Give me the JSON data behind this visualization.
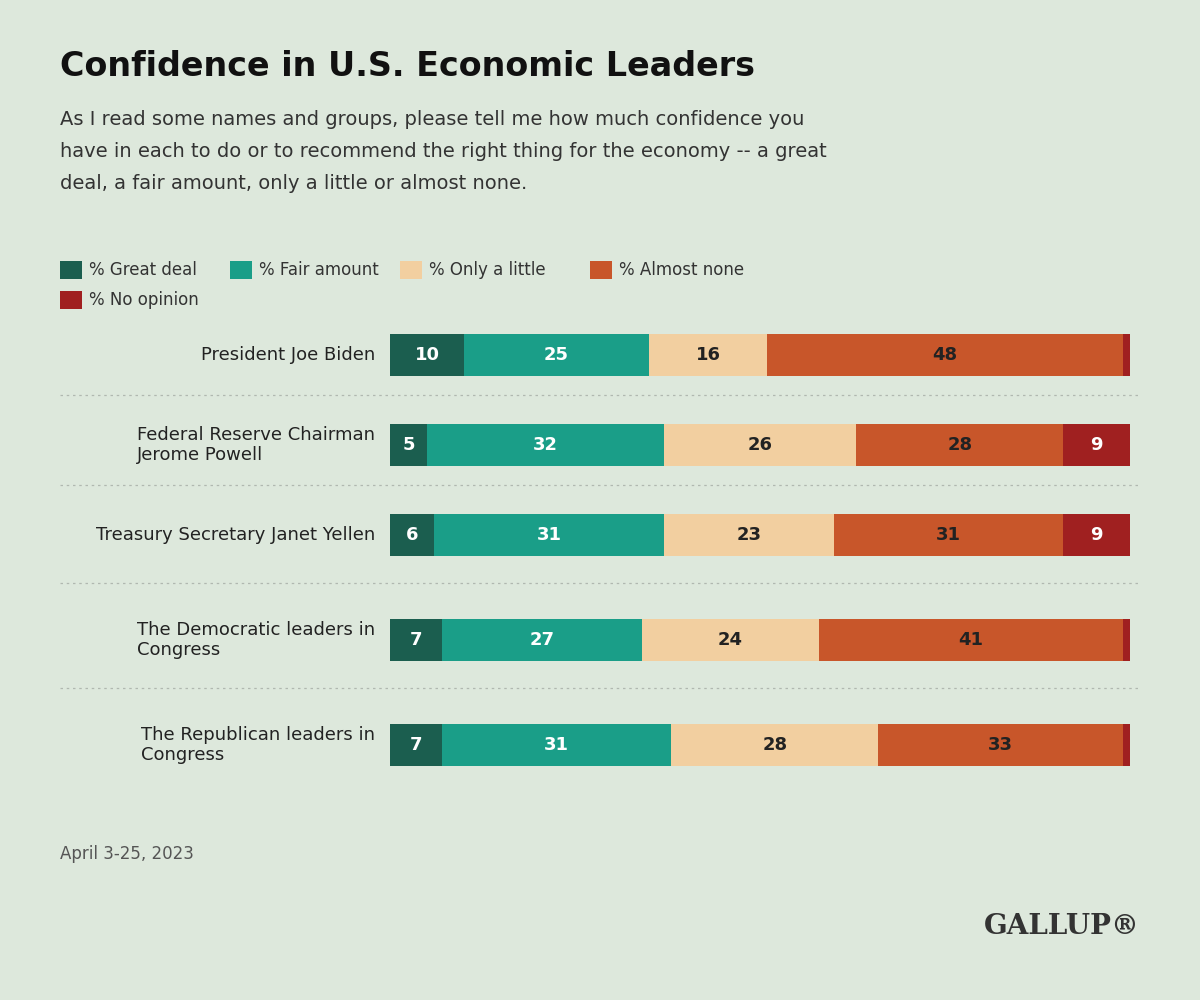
{
  "title": "Confidence in U.S. Economic Leaders",
  "subtitle_lines": [
    "As I read some names and groups, please tell me how much confidence you",
    "have in each to do or to recommend the right thing for the economy -- a great",
    "deal, a fair amount, only a little or almost none."
  ],
  "date_label": "April 3-25, 2023",
  "background_color": "#dde8dc",
  "categories": [
    "President Joe Biden",
    "Federal Reserve Chairman\nJerome Powell",
    "Treasury Secretary Janet Yellen",
    "The Democratic leaders in\nCongress",
    "The Republican leaders in\nCongress"
  ],
  "data": [
    [
      10,
      25,
      16,
      48,
      1
    ],
    [
      5,
      32,
      26,
      28,
      9
    ],
    [
      6,
      31,
      23,
      31,
      9
    ],
    [
      7,
      27,
      24,
      41,
      1
    ],
    [
      7,
      31,
      28,
      33,
      1
    ]
  ],
  "colors": [
    "#1b5e4f",
    "#1a9e88",
    "#f2cfa0",
    "#c8562a",
    "#a02020"
  ],
  "legend_labels": [
    "% Great deal",
    "% Fair amount",
    "% Only a little",
    "% Almost none",
    "% No opinion"
  ],
  "bar_height": 0.52,
  "label_color_light": "#ffffff",
  "label_color_dark": "#222222",
  "title_fontsize": 24,
  "subtitle_fontsize": 14,
  "label_fontsize": 13,
  "category_fontsize": 13,
  "legend_fontsize": 12
}
